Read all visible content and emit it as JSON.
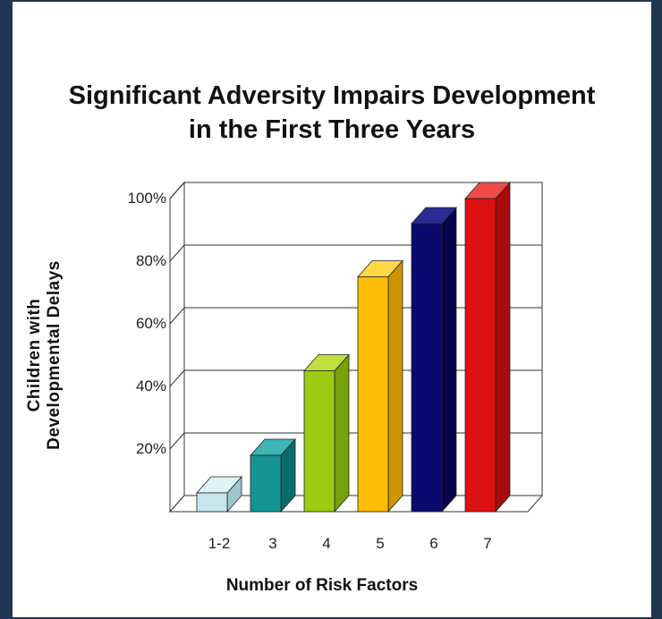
{
  "chart_data": {
    "type": "bar",
    "title_line1": "Significant Adversity Impairs Development",
    "title_line2": "in the First Three Years",
    "ylabel_line1": "Children with",
    "ylabel_line2": "Developmental Delays",
    "xlabel": "Number of Risk Factors",
    "categories": [
      "1-2",
      "3",
      "4",
      "5",
      "6",
      "7"
    ],
    "values": [
      6,
      18,
      45,
      75,
      92,
      100
    ],
    "yticks": [
      "20%",
      "40%",
      "60%",
      "80%",
      "100%"
    ],
    "ytick_values": [
      20,
      40,
      60,
      80,
      100
    ],
    "ylim": [
      0,
      100
    ],
    "grid": true,
    "bar_colors": [
      {
        "front": "#c4e6ec",
        "side": "#9ec6cf",
        "top": "#dff3f6"
      },
      {
        "front": "#149494",
        "side": "#0b6a6c",
        "top": "#3cb5b5"
      },
      {
        "front": "#9ccc12",
        "side": "#76a00c",
        "top": "#bfe03e"
      },
      {
        "front": "#ffbd08",
        "side": "#cf9200",
        "top": "#ffd84a"
      },
      {
        "front": "#0a0a6e",
        "side": "#05054a",
        "top": "#2b2b95"
      },
      {
        "front": "#dd1111",
        "side": "#a80c0c",
        "top": "#ef4a4a"
      }
    ]
  }
}
